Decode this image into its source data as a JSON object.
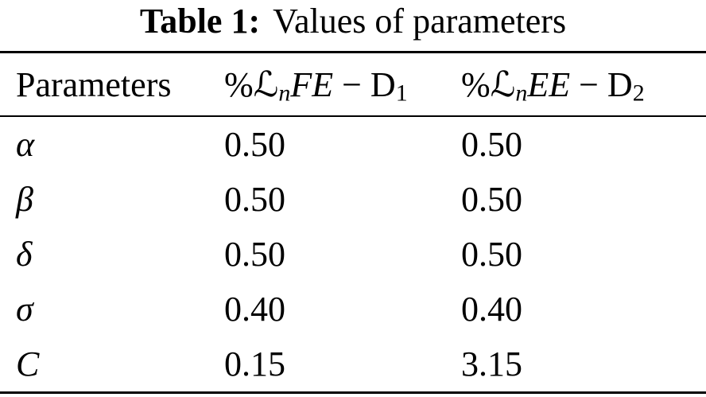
{
  "page": {
    "background": "#ffffff",
    "text_color": "#000000",
    "rule_color": "#000000"
  },
  "caption": {
    "label": "Table 1:",
    "text": "Values of parameters"
  },
  "table": {
    "header": {
      "col_param": "Parameters",
      "col_d1": {
        "percent": "%",
        "script_l": "ℒ",
        "sub_n": "n",
        "vars": "FE",
        "minus": " − ",
        "d": "D",
        "d_sub": "1"
      },
      "col_d2": {
        "percent": "%",
        "script_l": "ℒ",
        "sub_n": "n",
        "vars": "EE",
        "minus": " − ",
        "d": "D",
        "d_sub": "2"
      }
    },
    "rows": [
      {
        "param": "α",
        "d1": "0.50",
        "d2": "0.50"
      },
      {
        "param": "β",
        "d1": "0.50",
        "d2": "0.50"
      },
      {
        "param": "δ",
        "d1": "0.50",
        "d2": "0.50"
      },
      {
        "param": "σ",
        "d1": "0.40",
        "d2": "0.40"
      },
      {
        "param": "C",
        "d1": "0.15",
        "d2": "3.15"
      }
    ]
  }
}
